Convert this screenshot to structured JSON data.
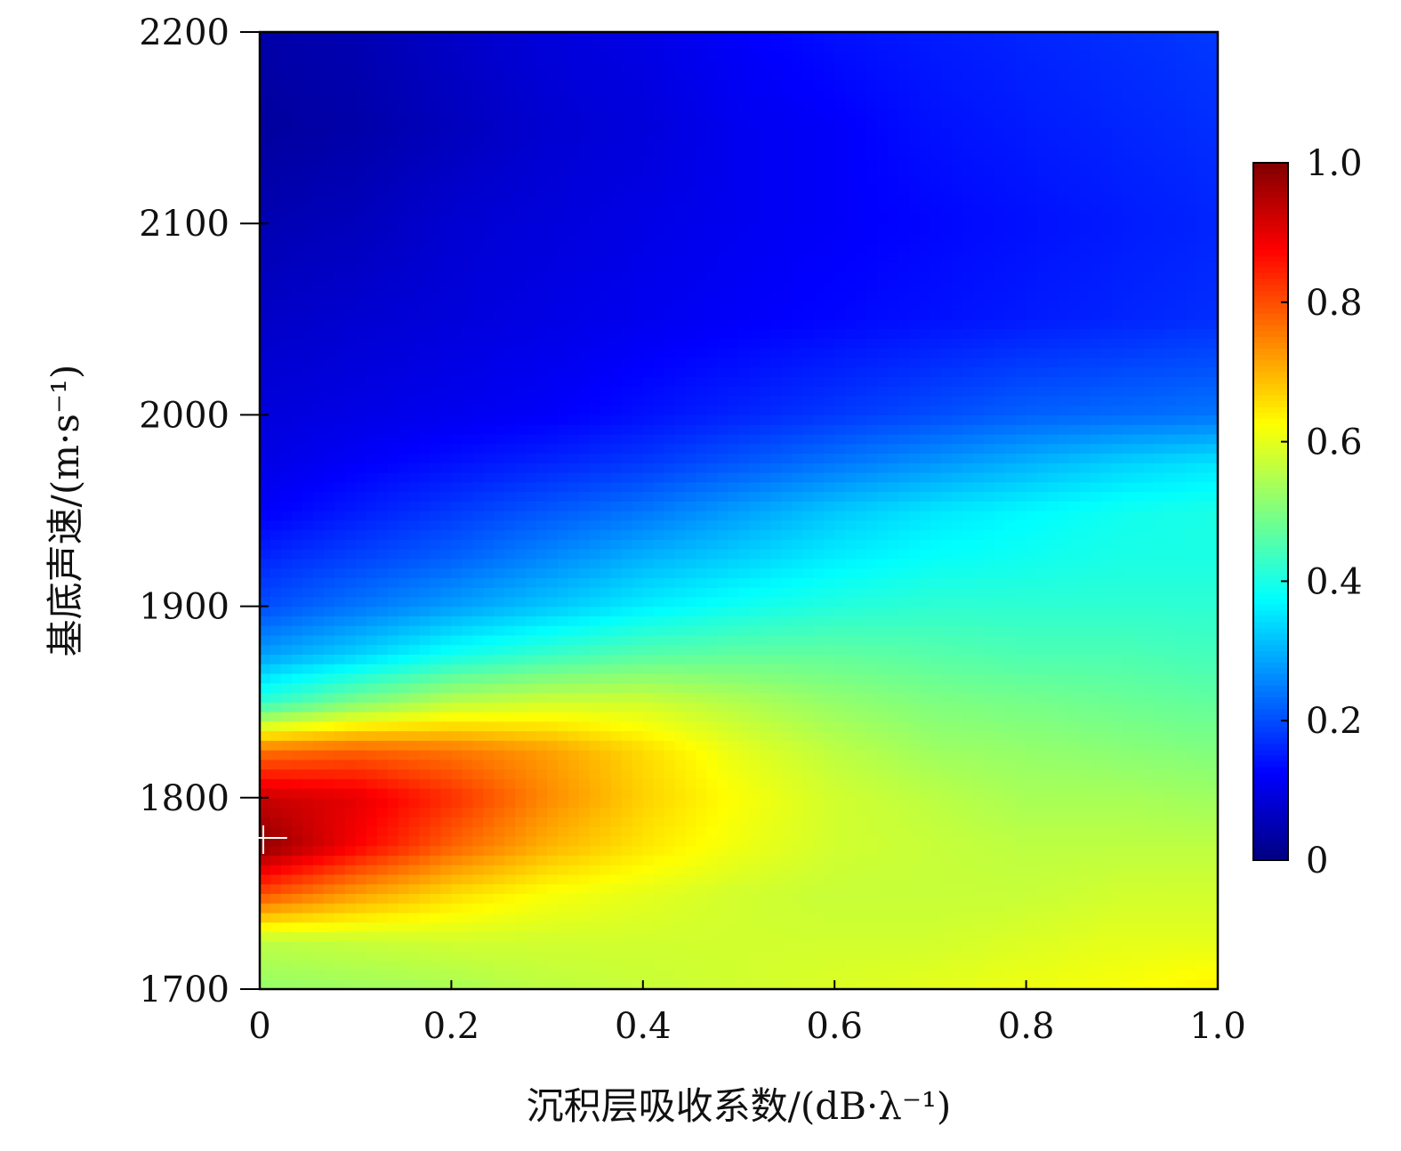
{
  "chart_data": {
    "type": "heatmap",
    "title": "",
    "xlabel": "沉积层吸收系数/(dB·λ⁻¹)",
    "ylabel": "基底声速/(m·s⁻¹)",
    "xlim": [
      0,
      1.0
    ],
    "ylim": [
      1700,
      2200
    ],
    "x_ticks": [
      {
        "value": 0,
        "label": "0"
      },
      {
        "value": 0.2,
        "label": "0.2"
      },
      {
        "value": 0.4,
        "label": "0.4"
      },
      {
        "value": 0.6,
        "label": "0.6"
      },
      {
        "value": 0.8,
        "label": "0.8"
      },
      {
        "value": 1.0,
        "label": "1.0"
      }
    ],
    "y_ticks": [
      {
        "value": 1700,
        "label": "1700"
      },
      {
        "value": 1800,
        "label": "1800"
      },
      {
        "value": 1900,
        "label": "1900"
      },
      {
        "value": 2000,
        "label": "2000"
      },
      {
        "value": 2100,
        "label": "2100"
      },
      {
        "value": 2200,
        "label": "2200"
      }
    ],
    "colorbar": {
      "colormap": "jet",
      "range": [
        0,
        1.0
      ],
      "ticks": [
        {
          "value": 0,
          "label": "0"
        },
        {
          "value": 0.2,
          "label": "0.2"
        },
        {
          "value": 0.4,
          "label": "0.4"
        },
        {
          "value": 0.6,
          "label": "0.6"
        },
        {
          "value": 0.8,
          "label": "0.8"
        },
        {
          "value": 1.0,
          "label": "1.0"
        }
      ]
    },
    "x": [
      0,
      0.1,
      0.2,
      0.3,
      0.4,
      0.5,
      0.6,
      0.7,
      0.8,
      0.9,
      1.0
    ],
    "y": [
      1700,
      1725,
      1750,
      1775,
      1800,
      1825,
      1850,
      1875,
      1900,
      1925,
      1950,
      1975,
      2000,
      2050,
      2100,
      2150,
      2200
    ],
    "z": [
      [
        0.52,
        0.53,
        0.54,
        0.56,
        0.57,
        0.58,
        0.59,
        0.6,
        0.61,
        0.62,
        0.64
      ],
      [
        0.56,
        0.57,
        0.58,
        0.58,
        0.58,
        0.58,
        0.58,
        0.58,
        0.59,
        0.6,
        0.6
      ],
      [
        0.8,
        0.72,
        0.66,
        0.62,
        0.6,
        0.58,
        0.57,
        0.57,
        0.57,
        0.58,
        0.58
      ],
      [
        0.99,
        0.88,
        0.78,
        0.7,
        0.65,
        0.61,
        0.58,
        0.57,
        0.56,
        0.56,
        0.56
      ],
      [
        0.93,
        0.9,
        0.83,
        0.74,
        0.67,
        0.62,
        0.58,
        0.56,
        0.54,
        0.54,
        0.53
      ],
      [
        0.76,
        0.78,
        0.76,
        0.72,
        0.66,
        0.6,
        0.56,
        0.53,
        0.52,
        0.51,
        0.5
      ],
      [
        0.42,
        0.5,
        0.56,
        0.58,
        0.58,
        0.55,
        0.52,
        0.5,
        0.49,
        0.48,
        0.47
      ],
      [
        0.28,
        0.33,
        0.39,
        0.43,
        0.46,
        0.47,
        0.47,
        0.46,
        0.45,
        0.45,
        0.44
      ],
      [
        0.2,
        0.24,
        0.28,
        0.32,
        0.36,
        0.39,
        0.41,
        0.42,
        0.42,
        0.42,
        0.42
      ],
      [
        0.16,
        0.19,
        0.22,
        0.26,
        0.3,
        0.33,
        0.36,
        0.38,
        0.39,
        0.4,
        0.4
      ],
      [
        0.12,
        0.15,
        0.18,
        0.21,
        0.24,
        0.28,
        0.32,
        0.35,
        0.37,
        0.39,
        0.4
      ],
      [
        0.1,
        0.12,
        0.14,
        0.16,
        0.18,
        0.21,
        0.24,
        0.27,
        0.3,
        0.33,
        0.35
      ],
      [
        0.09,
        0.1,
        0.11,
        0.12,
        0.14,
        0.16,
        0.18,
        0.2,
        0.22,
        0.23,
        0.24
      ],
      [
        0.07,
        0.08,
        0.09,
        0.1,
        0.11,
        0.12,
        0.13,
        0.14,
        0.15,
        0.16,
        0.17
      ],
      [
        0.05,
        0.06,
        0.08,
        0.09,
        0.1,
        0.11,
        0.12,
        0.13,
        0.14,
        0.15,
        0.16
      ],
      [
        0.03,
        0.04,
        0.06,
        0.08,
        0.09,
        0.11,
        0.12,
        0.14,
        0.15,
        0.16,
        0.17
      ],
      [
        0.04,
        0.05,
        0.07,
        0.09,
        0.1,
        0.12,
        0.14,
        0.15,
        0.16,
        0.17,
        0.18
      ]
    ],
    "marker": {
      "x": 0.01,
      "y": 1779,
      "symbol": "+",
      "color": "#ffffff"
    }
  }
}
